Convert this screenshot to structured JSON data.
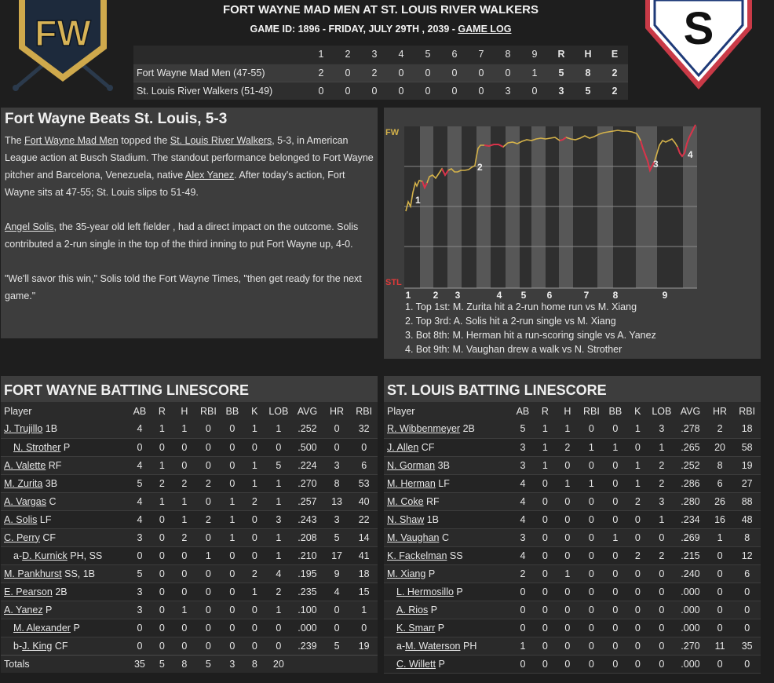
{
  "header": {
    "title": "FORT WAYNE MAD MEN AT ST. LOUIS RIVER WALKERS",
    "game_info": "GAME ID: 1896 - FRIDAY, JULY 29TH , 2039 - ",
    "game_log_link": "GAME LOG",
    "away_logo_text": "FW",
    "home_logo_text": "S"
  },
  "linescore": {
    "headers": [
      "1",
      "2",
      "3",
      "4",
      "5",
      "6",
      "7",
      "8",
      "9",
      "R",
      "H",
      "E"
    ],
    "rows": [
      {
        "team": "Fort Wayne Mad Men (47-55)",
        "cells": [
          "2",
          "0",
          "2",
          "0",
          "0",
          "0",
          "0",
          "0",
          "1",
          "5",
          "8",
          "2"
        ]
      },
      {
        "team": "St. Louis River Walkers (51-49)",
        "cells": [
          "0",
          "0",
          "0",
          "0",
          "0",
          "0",
          "0",
          "3",
          "0",
          "3",
          "5",
          "2"
        ]
      }
    ]
  },
  "story": {
    "headline": "Fort Wayne Beats St. Louis, 5-3",
    "p1": {
      "t1": "The ",
      "link1": "Fort Wayne Mad Men",
      "t2": " topped the ",
      "link2": "St. Louis River Walkers",
      "t3": ", 5-3, in American League action at Busch Stadium. The standout performance belonged to Fort Wayne pitcher and Barcelona, Venezuela, native ",
      "link3": "Alex Yanez",
      "t4": ". After today's action, Fort Wayne sits at 47-55; St. Louis slips to 51-49."
    },
    "p2": {
      "link1": "Angel Solis",
      "t1": ", the 35-year old left fielder , had a direct impact on the outcome. Solis contributed a 2-run single in the top of the third inning to put Fort Wayne up, 4-0."
    },
    "p3": "\"We'll savor this win,\" Solis told the Fort Wayne Times, \"then get ready for the next game.\""
  },
  "win_prob": {
    "top_label": "FW",
    "bottom_label": "STL",
    "top_color": "#d4b24a",
    "bottom_color": "#e03a3a",
    "inning_labels": [
      "1",
      "2",
      "3",
      "4",
      "5",
      "6",
      "7",
      "8",
      "9"
    ],
    "markers": [
      "1",
      "2",
      "3",
      "4"
    ],
    "events": [
      "1. Top 1st: M. Zurita hit a 2-run home run vs M. Xiang",
      "2. Top 3rd: A. Solis hit a 2-run single vs M. Xiang",
      "3. Bot 8th: M. Herman hit a run-scoring single vs A. Yanez",
      "4. Bot 9th: M. Vaughan drew a walk vs N. Strother"
    ]
  },
  "fw_batting": {
    "title": "FORT WAYNE BATTING LINESCORE",
    "columns": [
      "Player",
      "AB",
      "R",
      "H",
      "RBI",
      "BB",
      "K",
      "LOB",
      "AVG",
      "HR",
      "RBI"
    ],
    "rows": [
      {
        "prefix": "",
        "name": "J. Trujillo",
        "pos": " 1B",
        "sub": false,
        "stats": [
          "4",
          "1",
          "1",
          "0",
          "0",
          "1",
          "1",
          ".252",
          "0",
          "32"
        ]
      },
      {
        "prefix": "",
        "name": "N. Strother",
        "pos": " P",
        "sub": true,
        "stats": [
          "0",
          "0",
          "0",
          "0",
          "0",
          "0",
          "0",
          ".500",
          "0",
          "0"
        ]
      },
      {
        "prefix": "",
        "name": "A. Valette",
        "pos": " RF",
        "sub": false,
        "stats": [
          "4",
          "1",
          "0",
          "0",
          "0",
          "1",
          "5",
          ".224",
          "3",
          "6"
        ]
      },
      {
        "prefix": "",
        "name": "M. Zurita",
        "pos": " 3B",
        "sub": false,
        "stats": [
          "5",
          "2",
          "2",
          "2",
          "0",
          "1",
          "1",
          ".270",
          "8",
          "53"
        ]
      },
      {
        "prefix": "",
        "name": "A. Vargas",
        "pos": " C",
        "sub": false,
        "stats": [
          "4",
          "1",
          "1",
          "0",
          "1",
          "2",
          "1",
          ".257",
          "13",
          "40"
        ]
      },
      {
        "prefix": "",
        "name": "A. Solis",
        "pos": " LF",
        "sub": false,
        "stats": [
          "4",
          "0",
          "1",
          "2",
          "1",
          "0",
          "3",
          ".243",
          "3",
          "22"
        ]
      },
      {
        "prefix": "",
        "name": "C. Perry",
        "pos": " CF",
        "sub": false,
        "stats": [
          "3",
          "0",
          "2",
          "0",
          "1",
          "0",
          "1",
          ".208",
          "5",
          "14"
        ]
      },
      {
        "prefix": "a-",
        "name": "D. Kurnick",
        "pos": " PH, SS",
        "sub": true,
        "stats": [
          "0",
          "0",
          "0",
          "1",
          "0",
          "0",
          "1",
          ".210",
          "17",
          "41"
        ]
      },
      {
        "prefix": "",
        "name": "M. Pankhurst",
        "pos": " SS, 1B",
        "sub": false,
        "stats": [
          "5",
          "0",
          "0",
          "0",
          "0",
          "2",
          "4",
          ".195",
          "9",
          "18"
        ]
      },
      {
        "prefix": "",
        "name": "E. Pearson",
        "pos": " 2B",
        "sub": false,
        "stats": [
          "3",
          "0",
          "0",
          "0",
          "0",
          "1",
          "2",
          ".235",
          "4",
          "15"
        ]
      },
      {
        "prefix": "",
        "name": "A. Yanez",
        "pos": " P",
        "sub": false,
        "stats": [
          "3",
          "0",
          "1",
          "0",
          "0",
          "0",
          "1",
          ".100",
          "0",
          "1"
        ]
      },
      {
        "prefix": "",
        "name": "M. Alexander",
        "pos": " P",
        "sub": true,
        "stats": [
          "0",
          "0",
          "0",
          "0",
          "0",
          "0",
          "0",
          ".000",
          "0",
          "0"
        ]
      },
      {
        "prefix": "b-",
        "name": "J. King",
        "pos": " CF",
        "sub": true,
        "stats": [
          "0",
          "0",
          "0",
          "0",
          "0",
          "0",
          "0",
          ".239",
          "5",
          "19"
        ]
      }
    ],
    "totals": [
      "Totals",
      "35",
      "5",
      "8",
      "5",
      "3",
      "8",
      "20",
      "",
      "",
      ""
    ]
  },
  "stl_batting": {
    "title": "ST. LOUIS BATTING LINESCORE",
    "columns": [
      "Player",
      "AB",
      "R",
      "H",
      "RBI",
      "BB",
      "K",
      "LOB",
      "AVG",
      "HR",
      "RBI"
    ],
    "rows": [
      {
        "prefix": "",
        "name": "R. Wibbenmeyer",
        "pos": " 2B",
        "sub": false,
        "stats": [
          "5",
          "1",
          "1",
          "0",
          "0",
          "1",
          "3",
          ".278",
          "2",
          "18"
        ]
      },
      {
        "prefix": "",
        "name": "J. Allen",
        "pos": " CF",
        "sub": false,
        "stats": [
          "3",
          "1",
          "2",
          "1",
          "1",
          "0",
          "1",
          ".265",
          "20",
          "58"
        ]
      },
      {
        "prefix": "",
        "name": "N. Gorman",
        "pos": " 3B",
        "sub": false,
        "stats": [
          "3",
          "1",
          "0",
          "0",
          "0",
          "1",
          "2",
          ".252",
          "8",
          "19"
        ]
      },
      {
        "prefix": "",
        "name": "M. Herman",
        "pos": " LF",
        "sub": false,
        "stats": [
          "4",
          "0",
          "1",
          "1",
          "0",
          "1",
          "2",
          ".286",
          "6",
          "27"
        ]
      },
      {
        "prefix": "",
        "name": "M. Coke",
        "pos": " RF",
        "sub": false,
        "stats": [
          "4",
          "0",
          "0",
          "0",
          "0",
          "2",
          "3",
          ".280",
          "26",
          "88"
        ]
      },
      {
        "prefix": "",
        "name": "N. Shaw",
        "pos": " 1B",
        "sub": false,
        "stats": [
          "4",
          "0",
          "0",
          "0",
          "0",
          "0",
          "1",
          ".234",
          "16",
          "48"
        ]
      },
      {
        "prefix": "",
        "name": "M. Vaughan",
        "pos": " C",
        "sub": false,
        "stats": [
          "3",
          "0",
          "0",
          "0",
          "1",
          "0",
          "0",
          ".269",
          "1",
          "8"
        ]
      },
      {
        "prefix": "",
        "name": "K. Fackelman",
        "pos": " SS",
        "sub": false,
        "stats": [
          "4",
          "0",
          "0",
          "0",
          "0",
          "2",
          "2",
          ".215",
          "0",
          "12"
        ]
      },
      {
        "prefix": "",
        "name": "M. Xiang",
        "pos": " P",
        "sub": false,
        "stats": [
          "2",
          "0",
          "1",
          "0",
          "0",
          "0",
          "0",
          ".240",
          "0",
          "6"
        ]
      },
      {
        "prefix": "",
        "name": "L. Hermosillo",
        "pos": " P",
        "sub": true,
        "stats": [
          "0",
          "0",
          "0",
          "0",
          "0",
          "0",
          "0",
          ".000",
          "0",
          "0"
        ]
      },
      {
        "prefix": "",
        "name": "A. Rios",
        "pos": " P",
        "sub": true,
        "stats": [
          "0",
          "0",
          "0",
          "0",
          "0",
          "0",
          "0",
          ".000",
          "0",
          "0"
        ]
      },
      {
        "prefix": "",
        "name": "K. Smarr",
        "pos": " P",
        "sub": true,
        "stats": [
          "0",
          "0",
          "0",
          "0",
          "0",
          "0",
          "0",
          ".000",
          "0",
          "0"
        ]
      },
      {
        "prefix": "a-",
        "name": "M. Waterson",
        "pos": " PH",
        "sub": true,
        "stats": [
          "1",
          "0",
          "0",
          "0",
          "0",
          "0",
          "0",
          ".270",
          "11",
          "35"
        ]
      },
      {
        "prefix": "",
        "name": "C. Willett",
        "pos": " P",
        "sub": true,
        "stats": [
          "0",
          "0",
          "0",
          "0",
          "0",
          "0",
          "0",
          ".000",
          "0",
          "0"
        ]
      }
    ]
  }
}
